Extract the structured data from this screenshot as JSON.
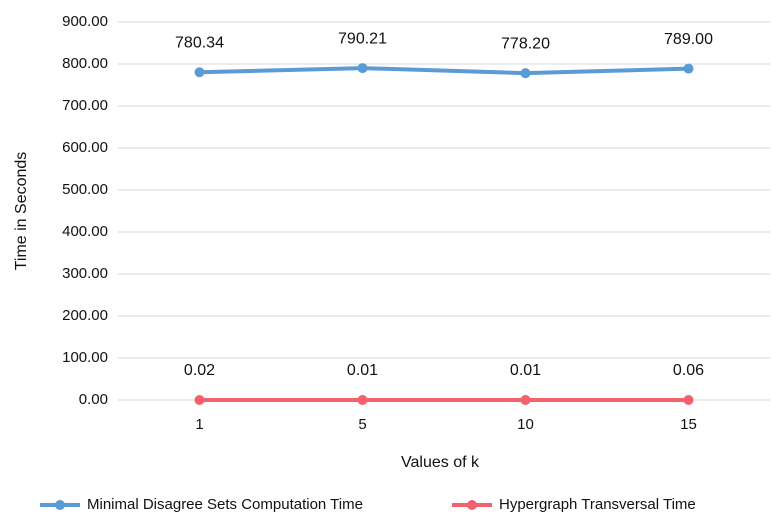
{
  "chart_data": {
    "type": "line",
    "x_label": "Values of k",
    "y_label": "Time in Seconds",
    "categories": [
      "1",
      "5",
      "10",
      "15"
    ],
    "series": [
      {
        "name": "Minimal Disagree Sets Computation Time",
        "color": "#5b9bd5",
        "values": [
          780.34,
          790.21,
          778.2,
          789.0
        ],
        "value_labels": [
          "780.34",
          "790.21",
          "778.20",
          "789.00"
        ]
      },
      {
        "name": "Hypergraph Transversal Time",
        "color": "#f4606c",
        "values": [
          0.02,
          0.01,
          0.01,
          0.06
        ],
        "value_labels": [
          "0.02",
          "0.01",
          "0.01",
          "0.06"
        ]
      }
    ],
    "ylim": [
      0,
      900
    ],
    "yticks": [
      {
        "value": 0,
        "label": "0.00"
      },
      {
        "value": 100,
        "label": "100.00"
      },
      {
        "value": 200,
        "label": "200.00"
      },
      {
        "value": 300,
        "label": "300.00"
      },
      {
        "value": 400,
        "label": "400.00"
      },
      {
        "value": 500,
        "label": "500.00"
      },
      {
        "value": 600,
        "label": "600.00"
      },
      {
        "value": 700,
        "label": "700.00"
      },
      {
        "value": 800,
        "label": "800.00"
      },
      {
        "value": 900,
        "label": "900.00"
      }
    ],
    "grid": true
  }
}
